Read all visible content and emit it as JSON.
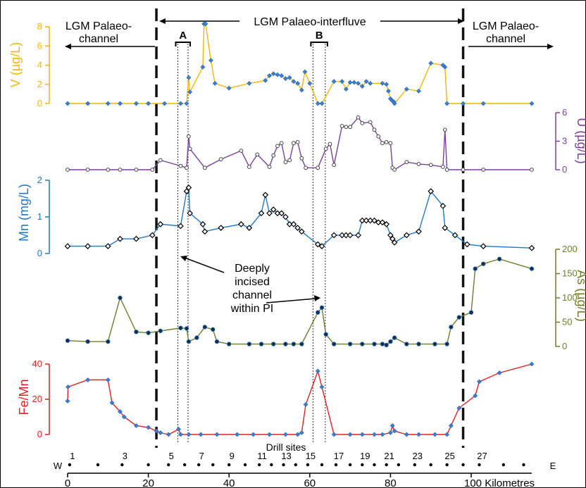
{
  "chart_data": {
    "type": "line",
    "x_axis": {
      "label": "Kilometres",
      "range": [
        0,
        115
      ],
      "ticks": [
        0,
        20,
        40,
        60,
        80,
        100
      ],
      "left_marker": "W",
      "right_marker": "E"
    },
    "regions": [
      {
        "label": "LGM Palaeo-channel",
        "from": 0,
        "to": 22
      },
      {
        "label": "LGM Palaeo-interfluve",
        "from": 22,
        "to": 98
      },
      {
        "label": "LGM Palaeo-channel",
        "from": 98,
        "to": 115
      }
    ],
    "boundaries": [
      22,
      98
    ],
    "channels": [
      {
        "label": "A",
        "from": 28,
        "to": 29.5
      },
      {
        "label": "B",
        "from": 61.5,
        "to": 63.5
      }
    ],
    "annotation": {
      "lines": [
        "Deeply",
        "incised",
        "channel",
        "within PI"
      ]
    },
    "drill_sites": {
      "title": "Drill sites",
      "labels": [
        "1",
        "3",
        "5",
        "7",
        "9",
        "11",
        "13",
        "15",
        "17",
        "19",
        "21",
        "23",
        "25",
        "27"
      ],
      "km": [
        0.5,
        7.5,
        13.5,
        20,
        25,
        29,
        32.5,
        36,
        40,
        44,
        47.5,
        50.5,
        53.5,
        56.5,
        59.5,
        63,
        66.5,
        70,
        73,
        76,
        79,
        82,
        86,
        90,
        94,
        98,
        102,
        108,
        113
      ]
    },
    "series": [
      {
        "name": "V",
        "ylabel": "V (µg/L)",
        "ylim": [
          0,
          8
        ],
        "yticks": [
          0,
          2,
          4,
          6,
          8
        ],
        "color": "#f2b705",
        "marker": "blue-dot",
        "points": [
          [
            0,
            0
          ],
          [
            5,
            0
          ],
          [
            10,
            0
          ],
          [
            13,
            0
          ],
          [
            17,
            0
          ],
          [
            20,
            0
          ],
          [
            24,
            0
          ],
          [
            28,
            0
          ],
          [
            29.5,
            0
          ],
          [
            30,
            2.7
          ],
          [
            30.3,
            1.2
          ],
          [
            33.5,
            3.8
          ],
          [
            33.8,
            8.3
          ],
          [
            34.2,
            8.3
          ],
          [
            35.5,
            4.5
          ],
          [
            36.5,
            2.1
          ],
          [
            40,
            1.6
          ],
          [
            45,
            2.1
          ],
          [
            49,
            2.4
          ],
          [
            50,
            2.9
          ],
          [
            51,
            3.1
          ],
          [
            52,
            3
          ],
          [
            53,
            2.9
          ],
          [
            54,
            2.6
          ],
          [
            55,
            2.7
          ],
          [
            56,
            2.3
          ],
          [
            57,
            2.1
          ],
          [
            58,
            1.4
          ],
          [
            58.8,
            3.3
          ],
          [
            60,
            2.1
          ],
          [
            62,
            0
          ],
          [
            63,
            0
          ],
          [
            66,
            2.3
          ],
          [
            68,
            2.3
          ],
          [
            69,
            1.5
          ],
          [
            70,
            2.2
          ],
          [
            71,
            2.2
          ],
          [
            72,
            2.1
          ],
          [
            73,
            1.8
          ],
          [
            74,
            2.3
          ],
          [
            75,
            2.1
          ],
          [
            78,
            2.1
          ],
          [
            79,
            2
          ],
          [
            79.5,
            1.3
          ],
          [
            80,
            0.5
          ],
          [
            80.4,
            0.3
          ],
          [
            80.8,
            0.2
          ],
          [
            81,
            0
          ],
          [
            84,
            1.5
          ],
          [
            87,
            1.3
          ],
          [
            90,
            4.2
          ],
          [
            93,
            4
          ],
          [
            93.5,
            3.8
          ],
          [
            94,
            0
          ],
          [
            98,
            0
          ],
          [
            103,
            0
          ],
          [
            115,
            0
          ]
        ]
      },
      {
        "name": "U",
        "ylabel": "U (µg/L)",
        "ylim": [
          0,
          6
        ],
        "yticks": [
          0,
          3,
          6
        ],
        "color": "#7b3f9e",
        "marker": "white-dot",
        "points": [
          [
            0,
            0
          ],
          [
            5,
            0
          ],
          [
            10,
            0
          ],
          [
            13,
            0
          ],
          [
            17,
            0
          ],
          [
            21,
            0
          ],
          [
            23,
            1
          ],
          [
            28,
            0.4
          ],
          [
            29.5,
            0.2
          ],
          [
            30,
            3.5
          ],
          [
            30.3,
            2.2
          ],
          [
            34,
            0.2
          ],
          [
            38,
            1.1
          ],
          [
            43,
            2
          ],
          [
            45,
            0.3
          ],
          [
            47,
            1.6
          ],
          [
            50,
            0.3
          ],
          [
            51,
            1.5
          ],
          [
            52,
            2.5
          ],
          [
            53,
            2.8
          ],
          [
            54,
            0.8
          ],
          [
            55,
            1
          ],
          [
            56,
            2.8
          ],
          [
            57,
            2.9
          ],
          [
            58,
            1.2
          ],
          [
            59,
            0.2
          ],
          [
            62,
            0.2
          ],
          [
            64,
            2.2
          ],
          [
            65,
            2.7
          ],
          [
            66,
            0.5
          ],
          [
            68,
            4.6
          ],
          [
            69,
            4.5
          ],
          [
            70,
            4.5
          ],
          [
            72,
            5.5
          ],
          [
            73,
            4.9
          ],
          [
            75,
            5
          ],
          [
            76,
            4.2
          ],
          [
            77,
            3.5
          ],
          [
            78,
            2.8
          ],
          [
            79,
            2.9
          ],
          [
            80,
            2.8
          ],
          [
            80.5,
            0.2
          ],
          [
            81,
            0
          ],
          [
            84,
            0.8
          ],
          [
            87,
            0.6
          ],
          [
            90,
            0.5
          ],
          [
            93,
            0.3
          ],
          [
            93.5,
            4.2
          ],
          [
            94,
            0
          ],
          [
            98,
            0
          ],
          [
            103,
            0
          ],
          [
            115,
            0
          ]
        ]
      },
      {
        "name": "Mn",
        "ylabel": "Mn (mg/L)",
        "ylim": [
          0,
          2
        ],
        "yticks": [
          0,
          1,
          2
        ],
        "color": "#1f78c8",
        "marker": "diamond",
        "points": [
          [
            0,
            0.2
          ],
          [
            5,
            0.2
          ],
          [
            10,
            0.2
          ],
          [
            13,
            0.4
          ],
          [
            17,
            0.4
          ],
          [
            21,
            0.5
          ],
          [
            23,
            0.8
          ],
          [
            28,
            0.75
          ],
          [
            29.5,
            1.7
          ],
          [
            30,
            1.8
          ],
          [
            30.3,
            1.1
          ],
          [
            33.5,
            0.8
          ],
          [
            34,
            0.6
          ],
          [
            38,
            0.7
          ],
          [
            43,
            0.8
          ],
          [
            45,
            0.7
          ],
          [
            48,
            1.1
          ],
          [
            49,
            1.6
          ],
          [
            50,
            1.1
          ],
          [
            51,
            1.2
          ],
          [
            52,
            1.1
          ],
          [
            53,
            1.1
          ],
          [
            54,
            1
          ],
          [
            55,
            0.8
          ],
          [
            56,
            0.8
          ],
          [
            57,
            0.7
          ],
          [
            58,
            0.6
          ],
          [
            62,
            0.25
          ],
          [
            63,
            0.2
          ],
          [
            66,
            0.5
          ],
          [
            68,
            0.5
          ],
          [
            69,
            0.5
          ],
          [
            70,
            0.5
          ],
          [
            72,
            0.5
          ],
          [
            73,
            0.9
          ],
          [
            74,
            0.9
          ],
          [
            75,
            0.9
          ],
          [
            76,
            0.9
          ],
          [
            77,
            0.85
          ],
          [
            78,
            0.85
          ],
          [
            79,
            0.8
          ],
          [
            80,
            0.5
          ],
          [
            80.5,
            0.4
          ],
          [
            81,
            0.3
          ],
          [
            84,
            0.5
          ],
          [
            87,
            0.6
          ],
          [
            90,
            1.7
          ],
          [
            93,
            1.3
          ],
          [
            93.5,
            0.7
          ],
          [
            96,
            0.5
          ],
          [
            99,
            0.25
          ],
          [
            103,
            0.2
          ],
          [
            115,
            0.15
          ]
        ]
      },
      {
        "name": "As",
        "ylabel": "As (µg/L)",
        "ylim": [
          0,
          200
        ],
        "yticks": [
          0,
          50,
          100,
          150,
          200
        ],
        "color": "#6b7f2a",
        "marker": "black-dot",
        "points": [
          [
            0,
            12
          ],
          [
            5,
            10
          ],
          [
            10,
            10
          ],
          [
            13,
            100
          ],
          [
            17,
            30
          ],
          [
            20,
            28
          ],
          [
            23,
            32
          ],
          [
            28,
            38
          ],
          [
            29.5,
            37
          ],
          [
            30,
            10
          ],
          [
            32,
            18
          ],
          [
            34,
            40
          ],
          [
            36,
            35
          ],
          [
            37,
            10
          ],
          [
            40,
            5
          ],
          [
            45,
            5
          ],
          [
            48,
            5
          ],
          [
            51,
            5
          ],
          [
            54,
            5
          ],
          [
            56,
            5
          ],
          [
            58,
            5
          ],
          [
            62,
            70
          ],
          [
            63,
            80
          ],
          [
            64,
            25
          ],
          [
            66,
            5
          ],
          [
            70,
            5
          ],
          [
            73,
            5
          ],
          [
            76,
            5
          ],
          [
            78,
            5
          ],
          [
            79,
            3
          ],
          [
            80,
            10
          ],
          [
            81,
            18
          ],
          [
            84,
            5
          ],
          [
            87,
            5
          ],
          [
            91,
            5
          ],
          [
            94,
            5
          ],
          [
            95,
            40
          ],
          [
            97,
            60
          ],
          [
            100,
            70
          ],
          [
            101,
            160
          ],
          [
            103,
            170
          ],
          [
            107,
            180
          ],
          [
            115,
            160
          ]
        ]
      },
      {
        "name": "Fe/Mn",
        "ylabel": "Fe/Mn",
        "ylim": [
          0,
          40
        ],
        "yticks": [
          0,
          20,
          40
        ],
        "color": "#e02020",
        "marker": "blue-dot",
        "points": [
          [
            0,
            19
          ],
          [
            0.1,
            27
          ],
          [
            5,
            31
          ],
          [
            10,
            31
          ],
          [
            11,
            18
          ],
          [
            13,
            13
          ],
          [
            14,
            10
          ],
          [
            17,
            5
          ],
          [
            20,
            4
          ],
          [
            22,
            2
          ],
          [
            23,
            1
          ],
          [
            25,
            0
          ],
          [
            27.5,
            3
          ],
          [
            28,
            0
          ],
          [
            30,
            0
          ],
          [
            33,
            0
          ],
          [
            37,
            0
          ],
          [
            42,
            0
          ],
          [
            46,
            0
          ],
          [
            50,
            0
          ],
          [
            54,
            0
          ],
          [
            57,
            0
          ],
          [
            58,
            1
          ],
          [
            59,
            17
          ],
          [
            62,
            36
          ],
          [
            63,
            27
          ],
          [
            66,
            0
          ],
          [
            70,
            0
          ],
          [
            73,
            0
          ],
          [
            76,
            0
          ],
          [
            78,
            0
          ],
          [
            80,
            1
          ],
          [
            80.5,
            5
          ],
          [
            81,
            2
          ],
          [
            84,
            0
          ],
          [
            87,
            0
          ],
          [
            91,
            0
          ],
          [
            94,
            0
          ],
          [
            95,
            5
          ],
          [
            97,
            15
          ],
          [
            101,
            22
          ],
          [
            102,
            30
          ],
          [
            107,
            35
          ],
          [
            115,
            40
          ]
        ]
      }
    ]
  }
}
